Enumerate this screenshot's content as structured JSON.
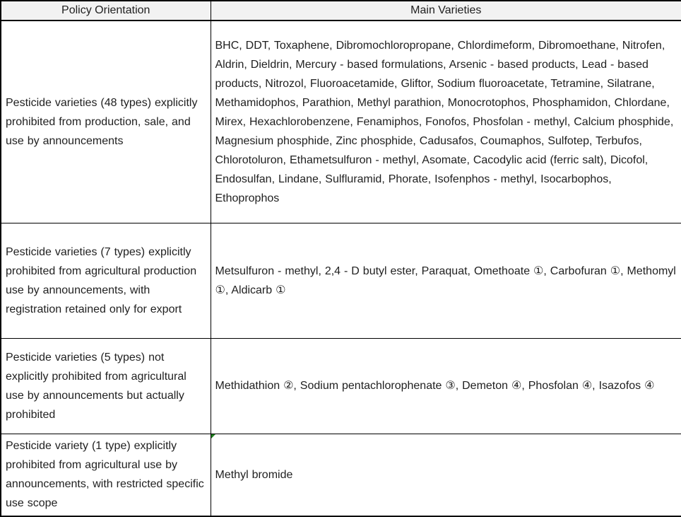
{
  "table": {
    "headers": [
      "Policy Orientation",
      "Main Varieties"
    ],
    "rows": [
      {
        "policy": "Pesticide varieties (48 types) explicitly prohibited from production, sale, and use by announcements",
        "varieties": "BHC, DDT, Toxaphene, Dibromochloropropane, Chlordimeform, Dibromoethane, Nitrofen, Aldrin, Dieldrin, Mercury - based formulations, Arsenic - based products, Lead - based products, Nitrozol, Fluoroacetamide, Gliftor, Sodium fluoroacetate, Tetramine, Silatrane, Methamidophos, Parathion, Methyl parathion, Monocrotophos, Phosphamidon, Chlordane, Mirex, Hexachlorobenzene, Fenamiphos, Fonofos, Phosfolan - methyl, Calcium phosphide, Magnesium phosphide, Zinc phosphide, Cadusafos, Coumaphos, Sulfotep, Terbufos, Chlorotoluron, Ethametsulfuron - methyl, Asomate, Cacodylic acid (ferric salt), Dicofol, Endosulfan, Lindane, Sulfluramid, Phorate, Isofenphos - methyl, Isocarbophos, Ethoprophos"
      },
      {
        "policy": "Pesticide varieties (7 types) explicitly prohibited from agricultural production use by announcements, with registration retained only for export",
        "varieties": "Metsulfuron - methyl, 2,4 - D butyl ester, Paraquat, Omethoate ①, Carbofuran ①, Methomyl ①, Aldicarb ①"
      },
      {
        "policy": "Pesticide varieties (5 types) not explicitly prohibited from agricultural use by announcements but actually prohibited",
        "varieties": "Methidathion ②, Sodium pentachlorophenate ③, Demeton ④, Phosfolan ④, Isazofos ④"
      },
      {
        "policy": "Pesticide variety (1 type) explicitly prohibited from agricultural use by announcements, with restricted specific use scope",
        "varieties": "Methyl bromide"
      }
    ]
  },
  "icons": {
    "green_corner_marker": "cell-error-indicator-triangle"
  },
  "colors": {
    "border": "#000000",
    "header_background": "#f2f2f2",
    "text": "#1f1f1f",
    "marker_green": "#1e7e1e",
    "cell_background": "#ffffff"
  }
}
